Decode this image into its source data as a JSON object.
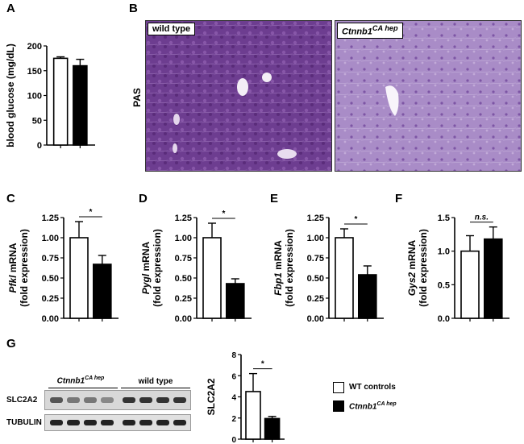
{
  "panels": {
    "A": "A",
    "B": "B",
    "C": "C",
    "D": "D",
    "E": "E",
    "F": "F",
    "G": "G"
  },
  "micrographs": {
    "stain_label": "PAS",
    "left_label": "wild type",
    "right_label_gene": "Ctnnb1",
    "right_label_sup": "CA hep"
  },
  "blot": {
    "group1_gene": "Ctnnb1",
    "group1_sup": "CA hep",
    "group2": "wild type",
    "row1": "SLC2A2",
    "row2": "TUBULIN"
  },
  "legend": {
    "item1": "WT controls",
    "item2_gene": "Ctnnb1",
    "item2_sup": "CA hep"
  },
  "chart_data": [
    {
      "panel": "A",
      "type": "bar",
      "categories": [
        "WT controls",
        "Ctnnb1 CA hep"
      ],
      "values": [
        175,
        160
      ],
      "errors": [
        3,
        13
      ],
      "ylabel": "blood glucose (mg/dL)",
      "yticks": [
        "0",
        "50",
        "100",
        "150",
        "200"
      ],
      "ylim": [
        0,
        200
      ],
      "significance": ""
    },
    {
      "panel": "C",
      "type": "bar",
      "categories": [
        "WT controls",
        "Ctnnb1 CA hep"
      ],
      "values": [
        1.0,
        0.67
      ],
      "errors": [
        0.2,
        0.11
      ],
      "ylabel_gene": "Pfkl",
      "ylabel_rest": " mRNA",
      "ylabel2": "(fold expression)",
      "yticks": [
        "0.00",
        "0.25",
        "0.50",
        "0.75",
        "1.00",
        "1.25"
      ],
      "ylim": [
        0,
        1.25
      ],
      "significance": "*"
    },
    {
      "panel": "D",
      "type": "bar",
      "categories": [
        "WT controls",
        "Ctnnb1 CA hep"
      ],
      "values": [
        1.0,
        0.43
      ],
      "errors": [
        0.18,
        0.06
      ],
      "ylabel_gene": "Pygl",
      "ylabel_rest": " mRNA",
      "ylabel2": "(fold expression)",
      "yticks": [
        "0.00",
        "0.25",
        "0.50",
        "0.75",
        "1.00",
        "1.25"
      ],
      "ylim": [
        0,
        1.25
      ],
      "significance": "*"
    },
    {
      "panel": "E",
      "type": "bar",
      "categories": [
        "WT controls",
        "Ctnnb1 CA hep"
      ],
      "values": [
        1.0,
        0.54
      ],
      "errors": [
        0.11,
        0.11
      ],
      "ylabel_gene": "Fbp1",
      "ylabel_rest": " mRNA",
      "ylabel2": "(fold expression)",
      "yticks": [
        "0.00",
        "0.25",
        "0.50",
        "0.75",
        "1.00",
        "1.25"
      ],
      "ylim": [
        0,
        1.25
      ],
      "significance": "*"
    },
    {
      "panel": "F",
      "type": "bar",
      "categories": [
        "WT controls",
        "Ctnnb1 CA hep"
      ],
      "values": [
        1.0,
        1.18
      ],
      "errors": [
        0.23,
        0.18
      ],
      "ylabel_gene": "Gys2",
      "ylabel_rest": " mRNA",
      "ylabel2": "(fold expression)",
      "yticks": [
        "0.0",
        "0.5",
        "1.0",
        "1.5"
      ],
      "ylim": [
        0,
        1.5
      ],
      "significance": "n.s."
    },
    {
      "panel": "G",
      "type": "bar",
      "categories": [
        "WT controls",
        "Ctnnb1 CA hep"
      ],
      "values": [
        4.5,
        1.95
      ],
      "errors": [
        1.7,
        0.2
      ],
      "ylabel": "SLC2A2",
      "yticks": [
        "0",
        "2",
        "4",
        "6",
        "8"
      ],
      "ylim": [
        0,
        8
      ],
      "significance": "*"
    }
  ]
}
